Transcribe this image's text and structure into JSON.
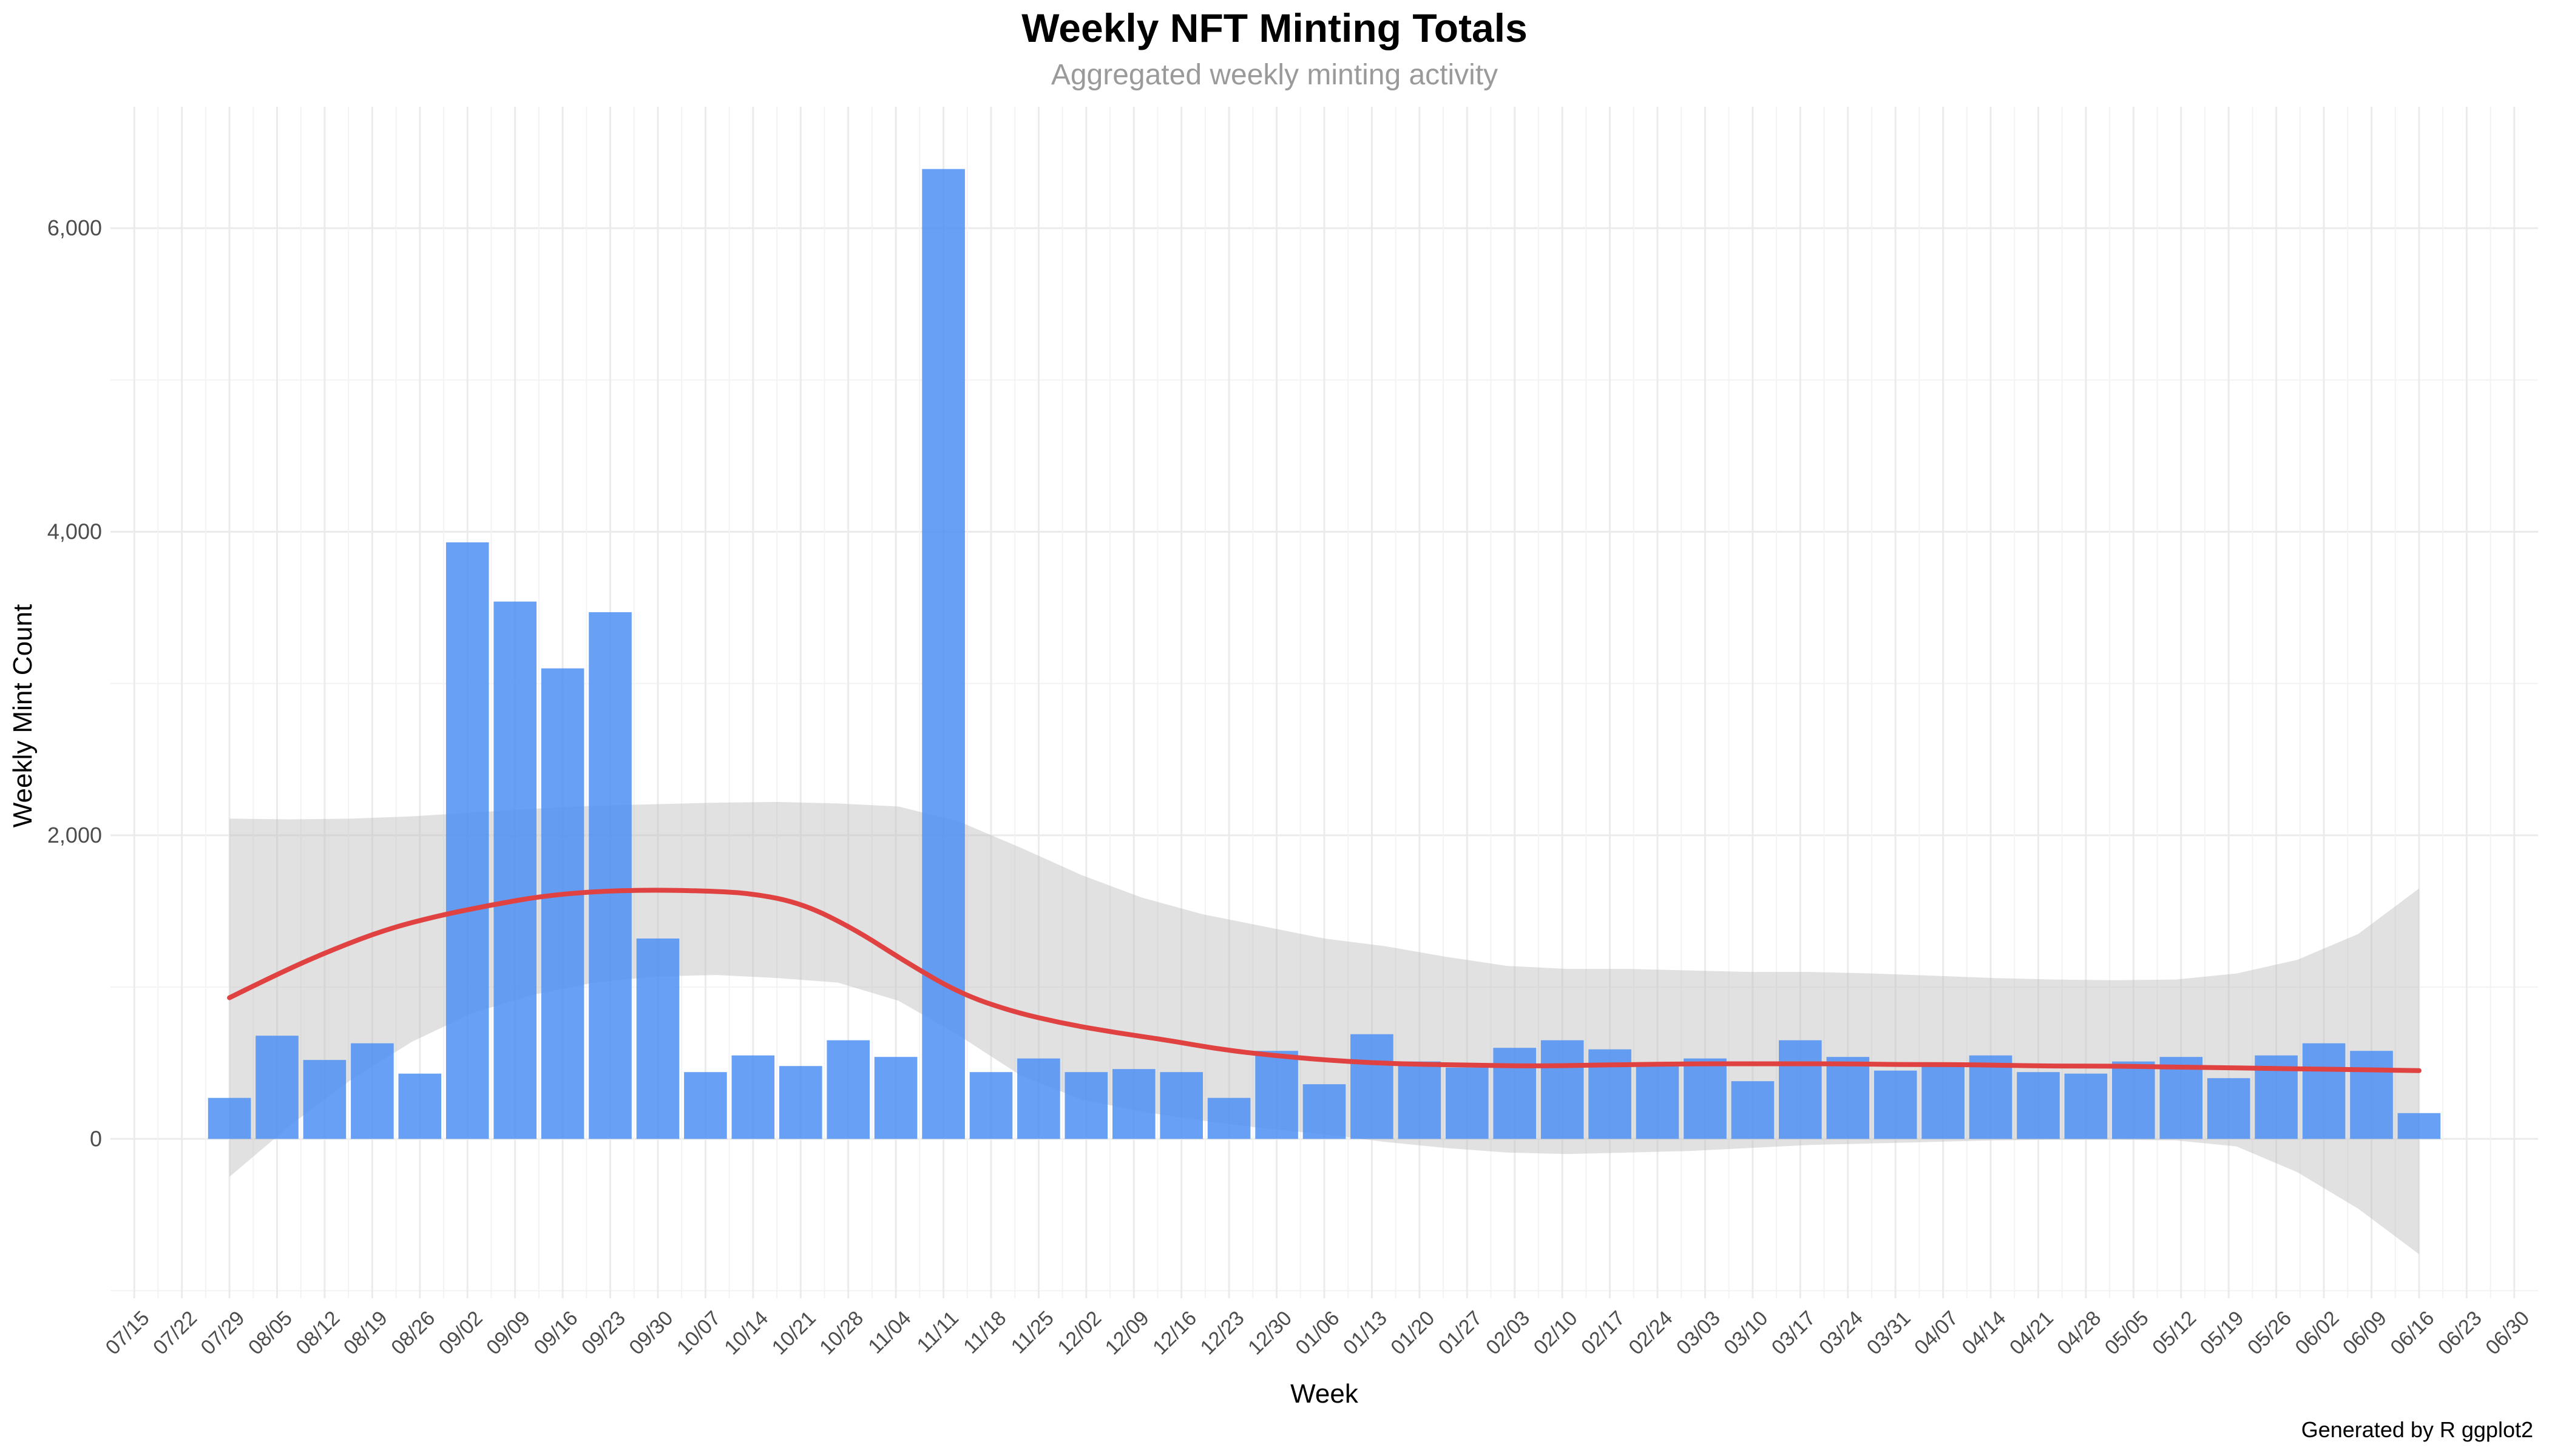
{
  "chart_data": {
    "type": "bar",
    "title": "Weekly NFT Minting Totals",
    "subtitle": "Aggregated weekly minting activity",
    "xlabel": "Week",
    "ylabel": "Weekly Mint Count",
    "caption": "Generated by R ggplot2",
    "ylim": [
      -1050,
      6800
    ],
    "y_ticks": [
      0,
      2000,
      4000,
      6000
    ],
    "y_tick_labels": [
      "0",
      "2,000",
      "4,000",
      "6,000"
    ],
    "x_tick_labels": [
      "07/15",
      "07/22",
      "07/29",
      "08/05",
      "08/12",
      "08/19",
      "08/26",
      "09/02",
      "09/09",
      "09/16",
      "09/23",
      "09/30",
      "10/07",
      "10/14",
      "10/21",
      "10/28",
      "11/04",
      "11/11",
      "11/18",
      "11/25",
      "12/02",
      "12/09",
      "12/16",
      "12/23",
      "12/30",
      "01/06",
      "01/13",
      "01/20",
      "01/27",
      "02/03",
      "02/10",
      "02/17",
      "02/24",
      "03/03",
      "03/10",
      "03/17",
      "03/24",
      "03/31",
      "04/07",
      "04/14",
      "04/21",
      "04/28",
      "05/05",
      "05/12",
      "05/19",
      "05/26",
      "06/02",
      "06/09",
      "06/16",
      "06/23",
      "06/30"
    ],
    "categories": [
      "07/29",
      "08/05",
      "08/12",
      "08/19",
      "08/26",
      "09/02",
      "09/09",
      "09/16",
      "09/23",
      "09/30",
      "10/07",
      "10/14",
      "10/21",
      "10/28",
      "11/04",
      "11/11",
      "11/18",
      "11/25",
      "12/02",
      "12/09",
      "12/16",
      "12/23",
      "12/30",
      "01/06",
      "01/13",
      "01/20",
      "01/27",
      "02/03",
      "02/10",
      "02/17",
      "02/24",
      "03/03",
      "03/10",
      "03/17",
      "03/24",
      "03/31",
      "04/07",
      "04/14",
      "04/21",
      "04/28",
      "05/05",
      "05/12",
      "05/19",
      "05/26",
      "06/02",
      "06/09",
      "06/16"
    ],
    "values": [
      270,
      680,
      520,
      630,
      430,
      3930,
      3540,
      3100,
      3470,
      1320,
      440,
      550,
      480,
      650,
      540,
      6390,
      440,
      530,
      440,
      460,
      440,
      270,
      580,
      360,
      690,
      510,
      470,
      600,
      650,
      590,
      480,
      530,
      380,
      650,
      540,
      450,
      480,
      550,
      440,
      430,
      510,
      540,
      400,
      550,
      630,
      580,
      170
    ],
    "smooth": {
      "fit": [
        930,
        1100,
        1250,
        1380,
        1470,
        1540,
        1600,
        1630,
        1640,
        1635,
        1620,
        1550,
        1380,
        1160,
        960,
        840,
        760,
        700,
        650,
        590,
        550,
        520,
        500,
        490,
        485,
        480,
        485,
        490,
        495,
        495,
        495,
        495,
        490,
        490,
        485,
        480,
        480,
        475,
        470,
        465,
        460,
        455,
        450
      ],
      "upper": [
        2110,
        2105,
        2110,
        2125,
        2150,
        2175,
        2195,
        2205,
        2215,
        2220,
        2210,
        2190,
        2090,
        1920,
        1740,
        1590,
        1480,
        1400,
        1320,
        1270,
        1200,
        1140,
        1120,
        1120,
        1110,
        1100,
        1100,
        1090,
        1075,
        1060,
        1050,
        1045,
        1050,
        1090,
        1180,
        1350,
        1650
      ],
      "lower": [
        -250,
        90,
        390,
        640,
        830,
        950,
        1030,
        1070,
        1080,
        1060,
        1030,
        910,
        680,
        420,
        260,
        180,
        120,
        70,
        30,
        -20,
        -60,
        -90,
        -100,
        -90,
        -80,
        -60,
        -40,
        -30,
        -20,
        -10,
        -5,
        -5,
        -10,
        -50,
        -220,
        -460,
        -760
      ]
    },
    "grid": true,
    "legend": "none",
    "colors": {
      "bar": "#4d8ff5",
      "smooth_line": "#e04141",
      "ribbon": "#bdbdbd"
    }
  }
}
